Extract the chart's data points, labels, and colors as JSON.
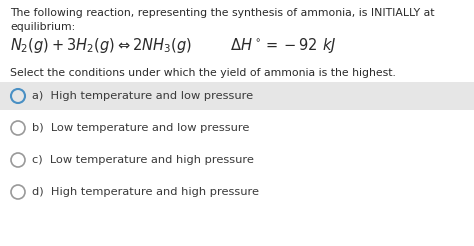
{
  "title_line1": "The following reaction, representing the synthesis of ammonia, is INITIALLY at",
  "title_line2": "equilibrium:",
  "equation_left": "$N_2(g) + 3H_2(g) \\Leftrightarrow 2NH_3(g)$",
  "enthalpy": "$\\Delta H^\\circ = -92\\ kJ$",
  "question": "Select the conditions under which the yield of ammonia is the highest.",
  "options": [
    "a)  High temperature and low pressure",
    "b)  Low temperature and low pressure",
    "c)  Low temperature and high pressure",
    "d)  High temperature and high pressure"
  ],
  "selected_option": 0,
  "bg_color": "#ffffff",
  "highlight_color": "#e6e6e6",
  "text_color": "#2a2a2a",
  "option_text_color": "#3a3a3a",
  "circle_color": "#999999",
  "selected_circle_color": "#4a90c4",
  "font_size_body": 7.8,
  "font_size_equation": 10.5,
  "font_size_options": 8.2
}
